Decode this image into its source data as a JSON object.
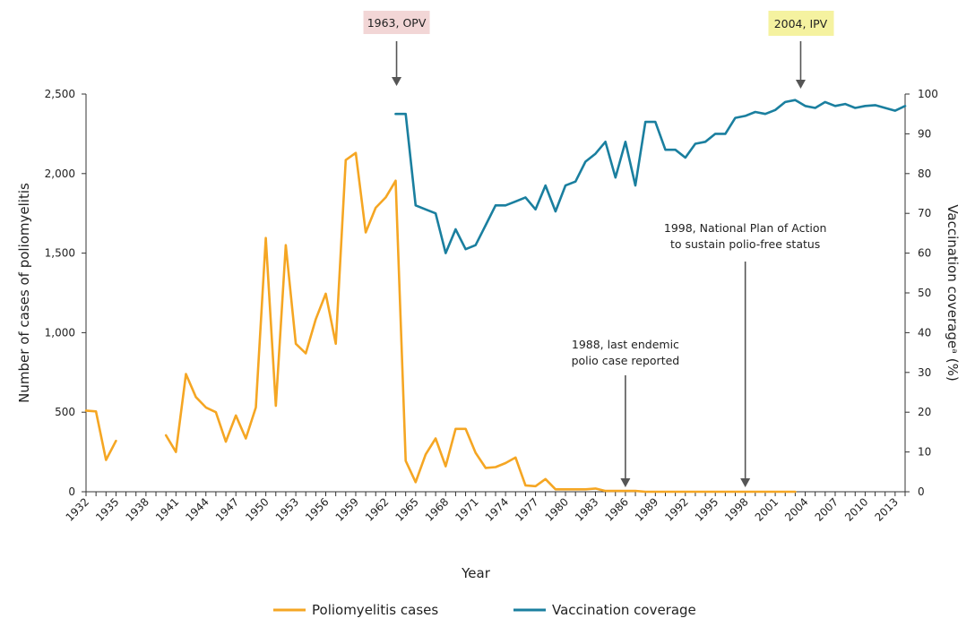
{
  "chart_data": {
    "type": "line",
    "xlabel": "Year",
    "ylabel": "Number of cases of poliomyelitis",
    "y2label": "Vaccination coverageᵃ (%)",
    "xlim": [
      1932,
      2014
    ],
    "ylim": [
      0,
      2500
    ],
    "y2lim": [
      0,
      100
    ],
    "x_ticks": [
      "1932",
      "1935",
      "1938",
      "1941",
      "1944",
      "1947",
      "1950",
      "1953",
      "1956",
      "1959",
      "1962",
      "1965",
      "1968",
      "1971",
      "1974",
      "1977",
      "1980",
      "1983",
      "1986",
      "1989",
      "1992",
      "1995",
      "1998",
      "2001",
      "2004",
      "2007",
      "2010",
      "2013"
    ],
    "y_ticks": [
      "0",
      "500",
      "1,000",
      "1,500",
      "2,000",
      "2,500"
    ],
    "y2_ticks": [
      "0",
      "10",
      "20",
      "30",
      "40",
      "50",
      "60",
      "70",
      "80",
      "90",
      "100"
    ],
    "grid": false,
    "legend_position": "bottom",
    "series": [
      {
        "name": "Poliomyelitis cases",
        "color": "#f5a623",
        "axis": "left",
        "segments": [
          [
            [
              1932,
              510
            ],
            [
              1933,
              505
            ],
            [
              1934,
              200
            ],
            [
              1935,
              320
            ]
          ],
          [
            [
              1940,
              355
            ],
            [
              1941,
              250
            ],
            [
              1942,
              740
            ],
            [
              1943,
              595
            ],
            [
              1944,
              530
            ],
            [
              1945,
              500
            ],
            [
              1946,
              315
            ],
            [
              1947,
              480
            ],
            [
              1948,
              335
            ],
            [
              1949,
              530
            ],
            [
              1950,
              1595
            ],
            [
              1951,
              540
            ],
            [
              1952,
              1550
            ],
            [
              1953,
              930
            ],
            [
              1954,
              870
            ],
            [
              1955,
              1085
            ],
            [
              1956,
              1245
            ],
            [
              1957,
              930
            ],
            [
              1958,
              2085
            ],
            [
              1959,
              2130
            ],
            [
              1960,
              1630
            ],
            [
              1961,
              1785
            ],
            [
              1962,
              1850
            ],
            [
              1963,
              1955
            ],
            [
              1964,
              195
            ],
            [
              1965,
              60
            ],
            [
              1966,
              235
            ],
            [
              1967,
              335
            ],
            [
              1968,
              160
            ],
            [
              1969,
              395
            ],
            [
              1970,
              395
            ],
            [
              1971,
              245
            ],
            [
              1972,
              150
            ],
            [
              1973,
              155
            ],
            [
              1974,
              180
            ],
            [
              1975,
              215
            ],
            [
              1976,
              40
            ],
            [
              1977,
              35
            ],
            [
              1978,
              80
            ],
            [
              1979,
              15
            ],
            [
              1980,
              15
            ],
            [
              1981,
              15
            ],
            [
              1982,
              15
            ],
            [
              1983,
              20
            ],
            [
              1984,
              5
            ],
            [
              1985,
              5
            ],
            [
              1986,
              5
            ],
            [
              1987,
              5
            ],
            [
              1988,
              0
            ],
            [
              1989,
              0
            ],
            [
              1990,
              0
            ],
            [
              1991,
              0
            ],
            [
              1992,
              0
            ],
            [
              1993,
              0
            ],
            [
              1994,
              0
            ],
            [
              1995,
              0
            ],
            [
              1996,
              0
            ],
            [
              1997,
              0
            ],
            [
              1998,
              0
            ],
            [
              1999,
              0
            ],
            [
              2000,
              0
            ],
            [
              2001,
              0
            ],
            [
              2002,
              0
            ],
            [
              2003,
              0
            ]
          ]
        ]
      },
      {
        "name": "Vaccination coverage",
        "color": "#1a7f9f",
        "axis": "right",
        "segments": [
          [
            [
              1963,
              95
            ],
            [
              1964,
              95
            ],
            [
              1965,
              72
            ],
            [
              1966,
              71
            ],
            [
              1967,
              70
            ],
            [
              1968,
              60
            ],
            [
              1969,
              66
            ],
            [
              1970,
              61
            ],
            [
              1971,
              62
            ],
            [
              1972,
              67
            ],
            [
              1973,
              72
            ],
            [
              1974,
              72
            ],
            [
              1975,
              73
            ],
            [
              1976,
              74
            ],
            [
              1977,
              71
            ],
            [
              1978,
              77
            ],
            [
              1979,
              70.5
            ],
            [
              1980,
              77
            ],
            [
              1981,
              78
            ],
            [
              1982,
              83
            ],
            [
              1983,
              85
            ],
            [
              1984,
              88
            ],
            [
              1985,
              79
            ],
            [
              1986,
              88
            ],
            [
              1987,
              77
            ],
            [
              1988,
              93
            ],
            [
              1989,
              93
            ],
            [
              1990,
              86
            ],
            [
              1991,
              86
            ],
            [
              1992,
              84
            ],
            [
              1993,
              87.5
            ],
            [
              1994,
              88
            ],
            [
              1995,
              90
            ],
            [
              1996,
              90
            ],
            [
              1997,
              94
            ],
            [
              1998,
              94.5
            ],
            [
              1999,
              95.5
            ],
            [
              2000,
              95
            ],
            [
              2001,
              96
            ],
            [
              2002,
              98
            ],
            [
              2003,
              98.5
            ],
            [
              2004,
              97
            ],
            [
              2005,
              96.5
            ],
            [
              2006,
              98
            ],
            [
              2007,
              97
            ],
            [
              2008,
              97.5
            ],
            [
              2009,
              96.5
            ],
            [
              2010,
              97
            ],
            [
              2011,
              97.2
            ],
            [
              2012,
              96.5
            ],
            [
              2013,
              95.8
            ],
            [
              2014,
              97
            ]
          ]
        ]
      }
    ],
    "annotations": [
      {
        "lines": [
          "1963, OPV"
        ],
        "x": 1963,
        "highlight": "#f2d6d6",
        "arrow_to": "top"
      },
      {
        "lines": [
          "2004, IPV"
        ],
        "x": 2003.5,
        "highlight": "#f5f2a0",
        "arrow_to": "top"
      },
      {
        "lines": [
          "1998, National Plan of Action",
          "to sustain polio-free status"
        ],
        "x": 1998,
        "highlight": null,
        "arrow_to": "baseline"
      },
      {
        "lines": [
          "1988, last endemic",
          "polio case reported"
        ],
        "x": 1986,
        "highlight": null,
        "arrow_to": "baseline"
      }
    ]
  }
}
